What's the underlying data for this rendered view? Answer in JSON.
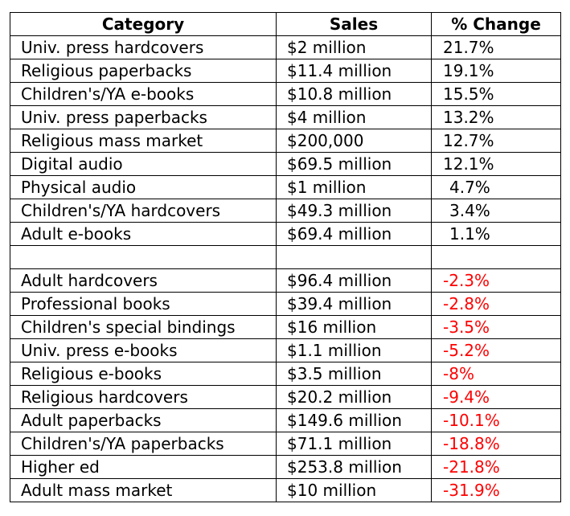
{
  "table": {
    "headers": [
      "Category",
      "Sales",
      "% Change"
    ],
    "colors": {
      "negative": "#ff0000",
      "text": "#000000"
    },
    "rows": [
      {
        "category": "Univ. press hardcovers",
        "sales": "$2 million",
        "change": "21.7%",
        "negative": false
      },
      {
        "category": "Religious paperbacks",
        "sales": "$11.4 million",
        "change": "19.1%",
        "negative": false
      },
      {
        "category": "Children's/YA e-books",
        "sales": "$10.8 million",
        "change": "15.5%",
        "negative": false
      },
      {
        "category": "Univ. press paperbacks",
        "sales": "$4 million",
        "change": "13.2%",
        "negative": false
      },
      {
        "category": "Religious mass market",
        "sales": "$200,000",
        "change": "12.7%",
        "negative": false
      },
      {
        "category": "Digital audio",
        "sales": "$69.5 million",
        "change": "12.1%",
        "negative": false
      },
      {
        "category": "Physical audio",
        "sales": "$1 million",
        "change": "4.7%",
        "negative": false
      },
      {
        "category": "Children's/YA hardcovers",
        "sales": "$49.3 million",
        "change": "3.4%",
        "negative": false
      },
      {
        "category": "Adult e-books",
        "sales": "$69.4 million",
        "change": "1.1%",
        "negative": false
      },
      {
        "category": "",
        "sales": "",
        "change": "",
        "negative": false
      },
      {
        "category": "Adult hardcovers",
        "sales": "$96.4 million",
        "change": "-2.3%",
        "negative": true
      },
      {
        "category": "Professional books",
        "sales": "$39.4 million",
        "change": "-2.8%",
        "negative": true
      },
      {
        "category": "Children's special bindings",
        "sales": "$16 million",
        "change": "-3.5%",
        "negative": true
      },
      {
        "category": "Univ. press e-books",
        "sales": "$1.1 million",
        "change": "-5.2%",
        "negative": true
      },
      {
        "category": "Religious e-books",
        "sales": "$3.5 million",
        "change": "-8%",
        "negative": true
      },
      {
        "category": "Religious hardcovers",
        "sales": "$20.2 million",
        "change": "-9.4%",
        "negative": true
      },
      {
        "category": "Adult paperbacks",
        "sales": "$149.6 million",
        "change": "-10.1%",
        "negative": true
      },
      {
        "category": "Children's/YA paperbacks",
        "sales": "$71.1 million",
        "change": "-18.8%",
        "negative": true
      },
      {
        "category": "Higher ed",
        "sales": "$253.8 million",
        "change": "-21.8%",
        "negative": true
      },
      {
        "category": "Adult mass market",
        "sales": "$10 million",
        "change": "-31.9%",
        "negative": true
      }
    ]
  }
}
